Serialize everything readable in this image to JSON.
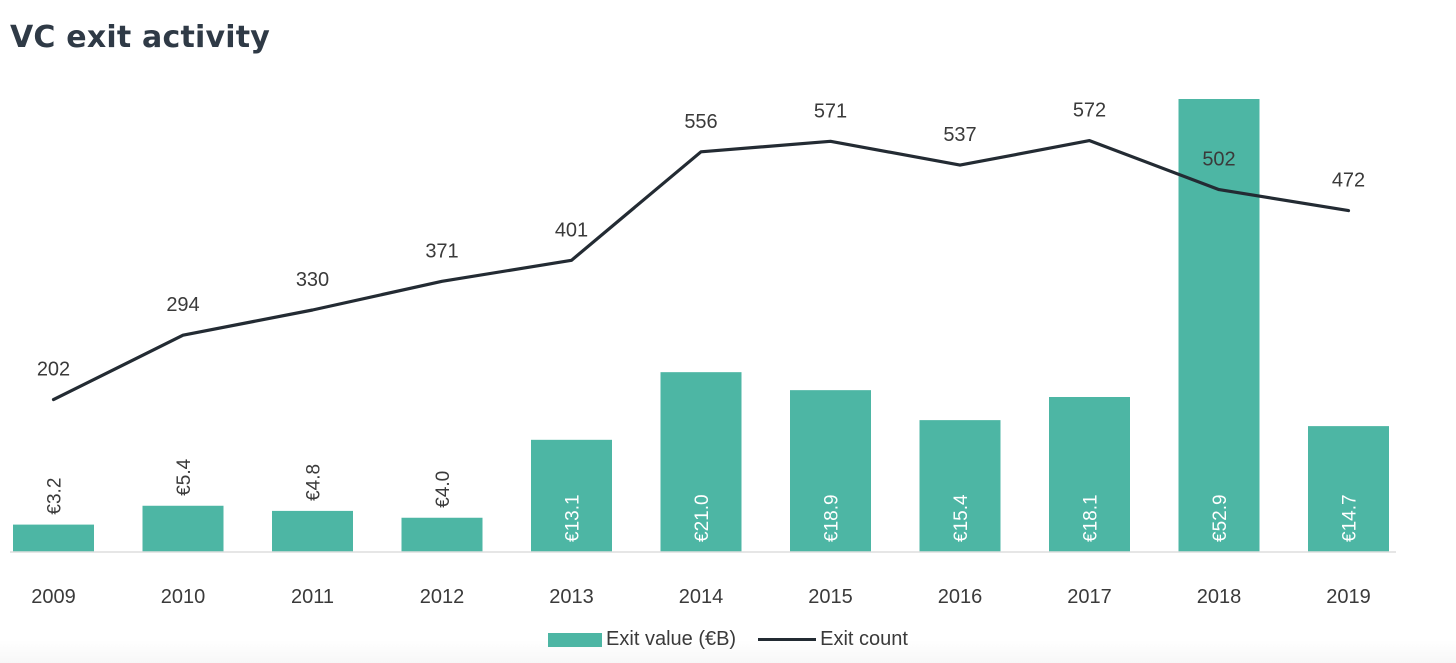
{
  "chart_data": {
    "type": "bar",
    "title": "VC exit activity",
    "categories": [
      "2009",
      "2010",
      "2011",
      "2012",
      "2013",
      "2014",
      "2015",
      "2016",
      "2017",
      "2018",
      "2019"
    ],
    "series": [
      {
        "name": "Exit value (€B)",
        "type": "bar",
        "values": [
          3.2,
          5.4,
          4.8,
          4.0,
          13.1,
          21.0,
          18.9,
          15.4,
          18.1,
          52.9,
          14.7
        ],
        "labels": [
          "€3.2",
          "€5.4",
          "€4.8",
          "€4.0",
          "€13.1",
          "€21.0",
          "€18.9",
          "€15.4",
          "€18.1",
          "€52.9",
          "€14.7"
        ],
        "color": "#4db6a4"
      },
      {
        "name": "Exit count",
        "type": "line",
        "values": [
          202,
          294,
          330,
          371,
          401,
          556,
          571,
          537,
          572,
          502,
          472
        ],
        "color": "#232b33"
      }
    ],
    "legend": "bottom-center",
    "grid": false
  }
}
